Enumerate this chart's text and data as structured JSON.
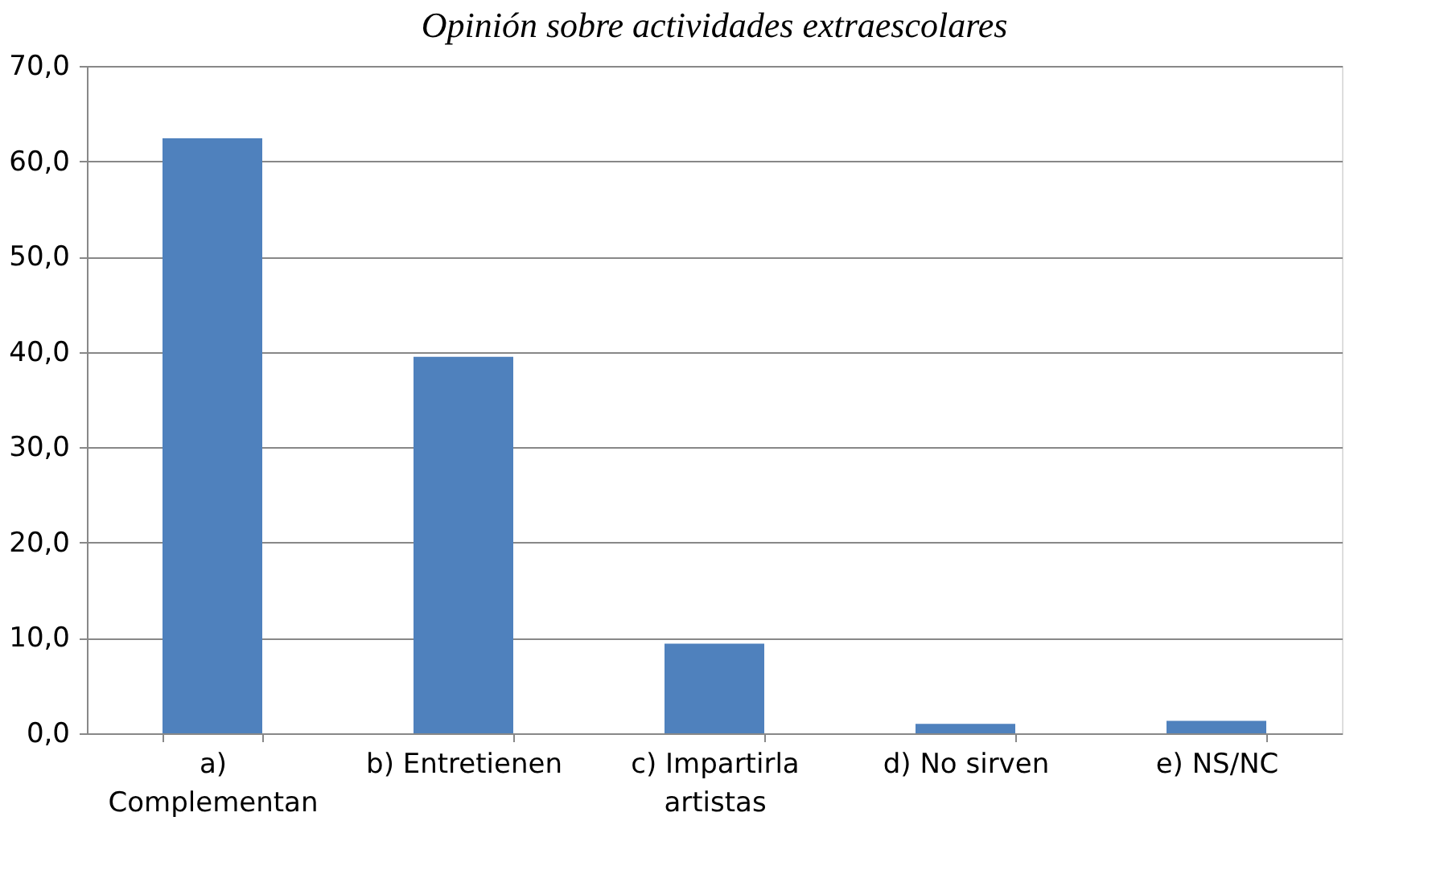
{
  "chart_data": {
    "type": "bar",
    "title": "Opinión sobre actividades extraescolares",
    "categories": [
      "a) Complementan",
      "b) Entretienen",
      "c) Impartirla artistas",
      "d) No sirven",
      "e) NS/NC"
    ],
    "values": [
      62.4,
      39.5,
      9.4,
      1.0,
      1.3
    ],
    "color": "#4f81bd",
    "ylim": [
      0,
      70
    ],
    "yticks": [
      {
        "value": 0,
        "label": "0,0"
      },
      {
        "value": 10,
        "label": "10,0"
      },
      {
        "value": 20,
        "label": "20,0"
      },
      {
        "value": 30,
        "label": "30,0"
      },
      {
        "value": 40,
        "label": "40,0"
      },
      {
        "value": 50,
        "label": "50,0"
      },
      {
        "value": 60,
        "label": "60,0"
      },
      {
        "value": 70,
        "label": "70,0"
      }
    ],
    "grid": "y"
  }
}
